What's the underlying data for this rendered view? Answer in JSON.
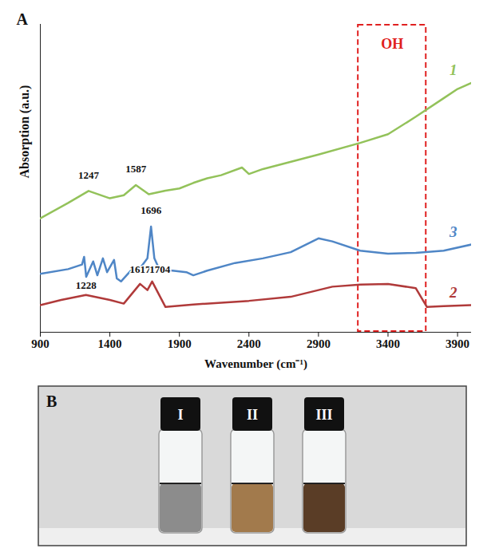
{
  "chart_data": {
    "type": "line",
    "panel": "A",
    "x_label": "Wavenumber (cm⁻¹)",
    "y_label": "Absorption (a.u.)",
    "xlim": [
      900,
      4000
    ],
    "xticks": [
      900,
      1400,
      1900,
      2400,
      2900,
      3400,
      3900
    ],
    "ylim": [
      0,
      100
    ],
    "tick_labels": "x",
    "grid": false,
    "series": [
      {
        "name": "1",
        "color": "#93c25a",
        "x": [
          900,
          1100,
          1247,
          1400,
          1500,
          1587,
          1680,
          1800,
          1900,
          2000,
          2100,
          2200,
          2350,
          2400,
          2500,
          2900,
          3200,
          3400,
          3600,
          3800,
          3900,
          4000
        ],
        "values": [
          37,
          42,
          45.9,
          43.5,
          44.5,
          47.8,
          44.8,
          46,
          46.7,
          48.5,
          50,
          51,
          53.5,
          51.4,
          53,
          57.7,
          61.5,
          64.3,
          70,
          76,
          79,
          81
        ]
      },
      {
        "name": "3",
        "color": "#4f86c6",
        "x": [
          900,
          1100,
          1200,
          1215,
          1230,
          1280,
          1310,
          1350,
          1380,
          1430,
          1450,
          1480,
          1550,
          1620,
          1670,
          1696,
          1720,
          1760,
          1850,
          1950,
          2000,
          2100,
          2300,
          2500,
          2700,
          2900,
          3000,
          3200,
          3400,
          3600,
          3800,
          4000
        ],
        "values": [
          19,
          20.5,
          22,
          24.5,
          18,
          23,
          18.5,
          24,
          19.5,
          23.5,
          17.5,
          16.5,
          20,
          21,
          24,
          34.3,
          24,
          20,
          20,
          19.5,
          18.5,
          20,
          22.5,
          24,
          26,
          30.5,
          29.5,
          26.5,
          25.5,
          25.8,
          26.5,
          28.5
        ]
      },
      {
        "name": "2",
        "color": "#b03a3a",
        "x": [
          900,
          1050,
          1228,
          1400,
          1500,
          1617,
          1670,
          1704,
          1800,
          2000,
          2400,
          2700,
          3000,
          3200,
          3400,
          3600,
          3680,
          3800,
          4000
        ],
        "values": [
          8.8,
          10.5,
          12.1,
          10.5,
          9.3,
          15.7,
          13.7,
          16.5,
          8.2,
          9,
          10.2,
          11.5,
          14.8,
          15.5,
          15.7,
          14.3,
          8.2,
          8.5,
          8.8
        ]
      }
    ],
    "annotations": [
      {
        "text": "1247",
        "x": 1247,
        "y": 51
      },
      {
        "text": "1587",
        "x": 1587,
        "y": 53
      },
      {
        "text": "1696",
        "x": 1696,
        "y": 39.5
      },
      {
        "text": "1228",
        "x": 1228,
        "y": 15.3
      },
      {
        "text": "1617",
        "x": 1617,
        "y": 20.5
      },
      {
        "text": "1704",
        "x": 1760,
        "y": 20.5
      }
    ],
    "region": {
      "label": "OH",
      "x": [
        3180,
        3680
      ]
    }
  },
  "photo": {
    "panel": "B",
    "vials": [
      {
        "label": "I",
        "color": "#8c8c8c"
      },
      {
        "label": "II",
        "color": "#a27a4c"
      },
      {
        "label": "III",
        "color": "#5a3d26"
      }
    ]
  }
}
